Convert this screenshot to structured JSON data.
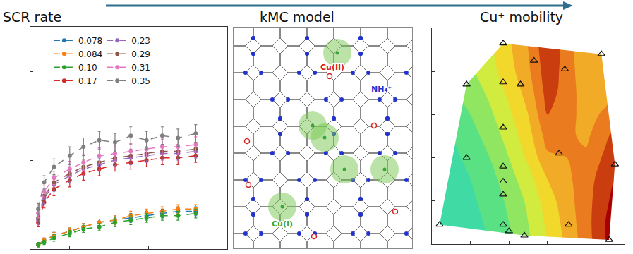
{
  "chart_data": [
    {
      "type": "scatter",
      "title": "SCR rate",
      "xlim": [
        0,
        10
      ],
      "ylim": [
        0,
        10
      ],
      "xticks": [
        0,
        2,
        4,
        6,
        8,
        10
      ],
      "yticks": [
        0,
        2,
        4,
        6,
        8,
        10
      ],
      "tick_labels": false,
      "grid": false,
      "legend": "top",
      "marker": "circle",
      "line_style": "dashed",
      "x": [
        0.4,
        0.7,
        1.2,
        2.0,
        2.7,
        3.5,
        4.3,
        5.1,
        5.9,
        6.7,
        7.5,
        8.4
      ],
      "series": [
        {
          "name": "0.078",
          "color": "#1f77b4",
          "values": [
            0.2,
            0.4,
            0.6,
            0.8,
            1.0,
            1.2,
            1.3,
            1.4,
            1.5,
            1.6,
            1.7,
            1.7
          ],
          "error": [
            0.1,
            0.1,
            0.15,
            0.15,
            0.15,
            0.15,
            0.2,
            0.2,
            0.2,
            0.2,
            0.2,
            0.2
          ]
        },
        {
          "name": "0.084",
          "color": "#ff7f0e",
          "values": [
            0.2,
            0.4,
            0.6,
            0.8,
            1.0,
            1.2,
            1.3,
            1.5,
            1.6,
            1.7,
            1.8,
            1.8
          ],
          "error": [
            0.1,
            0.1,
            0.15,
            0.15,
            0.15,
            0.15,
            0.2,
            0.2,
            0.2,
            0.2,
            0.2,
            0.2
          ]
        },
        {
          "name": "0.10",
          "color": "#2ca02c",
          "values": [
            0.2,
            0.3,
            0.5,
            0.7,
            0.9,
            1.0,
            1.2,
            1.3,
            1.4,
            1.5,
            1.5,
            1.6
          ],
          "error": [
            0.1,
            0.1,
            0.15,
            0.15,
            0.15,
            0.15,
            0.2,
            0.2,
            0.2,
            0.2,
            0.2,
            0.2
          ]
        },
        {
          "name": "0.17",
          "color": "#d62728",
          "values": [
            1.2,
            2.1,
            2.7,
            3.1,
            3.4,
            3.6,
            3.8,
            3.9,
            4.0,
            4.1,
            4.1,
            4.2
          ],
          "error": [
            0.2,
            0.25,
            0.3,
            0.3,
            0.3,
            0.3,
            0.3,
            0.3,
            0.3,
            0.3,
            0.3,
            0.3
          ]
        },
        {
          "name": "0.23",
          "color": "#9467bd",
          "values": [
            1.3,
            2.3,
            2.9,
            3.3,
            3.6,
            3.8,
            4.0,
            4.1,
            4.2,
            4.3,
            4.3,
            4.4
          ],
          "error": [
            0.2,
            0.25,
            0.3,
            0.3,
            0.3,
            0.3,
            0.3,
            0.3,
            0.3,
            0.3,
            0.3,
            0.3
          ]
        },
        {
          "name": "0.29",
          "color": "#8c564b",
          "values": [
            1.4,
            2.4,
            3.0,
            3.4,
            3.7,
            3.9,
            4.1,
            4.2,
            4.3,
            4.4,
            4.4,
            4.5
          ],
          "error": [
            0.2,
            0.25,
            0.3,
            0.3,
            0.3,
            0.3,
            0.3,
            0.3,
            0.3,
            0.3,
            0.3,
            0.3
          ]
        },
        {
          "name": "0.31",
          "color": "#e377c2",
          "values": [
            1.6,
            2.6,
            3.2,
            3.6,
            3.9,
            4.2,
            4.3,
            4.4,
            4.5,
            4.6,
            4.6,
            4.7
          ],
          "error": [
            0.2,
            0.25,
            0.3,
            0.35,
            0.35,
            0.35,
            0.35,
            0.35,
            0.35,
            0.35,
            0.35,
            0.35
          ]
        },
        {
          "name": "0.35",
          "color": "#7f7f7f",
          "values": [
            1.8,
            3.0,
            3.7,
            4.2,
            4.6,
            4.9,
            4.8,
            5.1,
            4.9,
            5.1,
            5.0,
            5.2
          ],
          "error": [
            0.25,
            0.3,
            0.35,
            0.4,
            0.4,
            0.4,
            0.4,
            0.4,
            0.4,
            0.4,
            0.4,
            0.4
          ]
        }
      ]
    },
    {
      "type": "contour",
      "title": "Cu⁺ mobility",
      "xlim": [
        0,
        10
      ],
      "ylim": [
        0,
        10
      ],
      "xticks": [
        0,
        2,
        4,
        6,
        8,
        10
      ],
      "yticks": [
        0,
        2,
        4,
        6,
        8,
        10
      ],
      "tick_labels": false,
      "grid": false,
      "x": [
        0,
        1,
        2,
        3,
        4,
        5,
        6,
        7,
        8,
        9,
        10
      ],
      "y": [
        0,
        1,
        2,
        3,
        4,
        5,
        6,
        7,
        8,
        9,
        10
      ],
      "z": [
        [
          0.1,
          0.12,
          0.15,
          0.2,
          0.28,
          0.38,
          0.5,
          0.62,
          0.75,
          0.9,
          1.0
        ],
        [
          0.1,
          0.12,
          0.16,
          0.22,
          0.3,
          0.4,
          0.52,
          0.64,
          0.76,
          0.9,
          1.0
        ],
        [
          0.12,
          0.14,
          0.18,
          0.24,
          0.32,
          0.42,
          0.55,
          0.66,
          0.76,
          0.88,
          0.98
        ],
        [
          0.14,
          0.16,
          0.2,
          0.26,
          0.36,
          0.46,
          0.6,
          0.68,
          0.75,
          0.86,
          0.95
        ],
        [
          0.16,
          0.18,
          0.22,
          0.3,
          0.4,
          0.52,
          0.68,
          0.7,
          0.72,
          0.82,
          0.92
        ],
        [
          0.18,
          0.2,
          0.26,
          0.34,
          0.44,
          0.56,
          0.74,
          0.72,
          0.68,
          0.78,
          0.88
        ],
        [
          0.2,
          0.24,
          0.3,
          0.38,
          0.48,
          0.6,
          0.8,
          0.74,
          0.66,
          0.72,
          0.8
        ],
        [
          0.22,
          0.28,
          0.34,
          0.42,
          0.52,
          0.64,
          0.84,
          0.76,
          0.64,
          0.66,
          0.72
        ],
        [
          0.24,
          0.3,
          0.38,
          0.46,
          0.56,
          0.68,
          0.86,
          0.76,
          0.62,
          0.62,
          0.66
        ],
        [
          0.26,
          0.32,
          0.4,
          0.48,
          0.58,
          0.7,
          0.88,
          0.76,
          0.6,
          0.6,
          0.62
        ],
        [
          0.28,
          0.34,
          0.42,
          0.5,
          0.6,
          0.72,
          0.9,
          0.76,
          0.6,
          0.58,
          0.6
        ]
      ],
      "zlim": [
        0,
        1
      ],
      "points": {
        "marker": "triangle",
        "x": [
          3.7,
          5.3,
          6.9,
          8.8,
          1.8,
          3.7,
          4.6,
          3.7,
          1.8,
          3.7,
          6.6,
          9.5,
          3.7,
          3.7,
          0.4,
          3.7,
          4.0,
          4.8,
          7.1,
          9.2
        ],
        "y": [
          9.3,
          8.5,
          8.1,
          8.8,
          7.4,
          7.5,
          7.4,
          5.4,
          4.0,
          3.6,
          4.2,
          3.7,
          2.9,
          2.3,
          0.9,
          0.9,
          0.6,
          0.4,
          0.9,
          0.2
        ]
      }
    }
  ],
  "diagram": {
    "title": "kMC model",
    "labels": [
      {
        "text": "Cu(II)",
        "color": "#d62020"
      },
      {
        "text": "NH₄⁺",
        "color": "#2233cc"
      },
      {
        "text": "Cu(I)",
        "color": "#3aa63a"
      }
    ]
  }
}
